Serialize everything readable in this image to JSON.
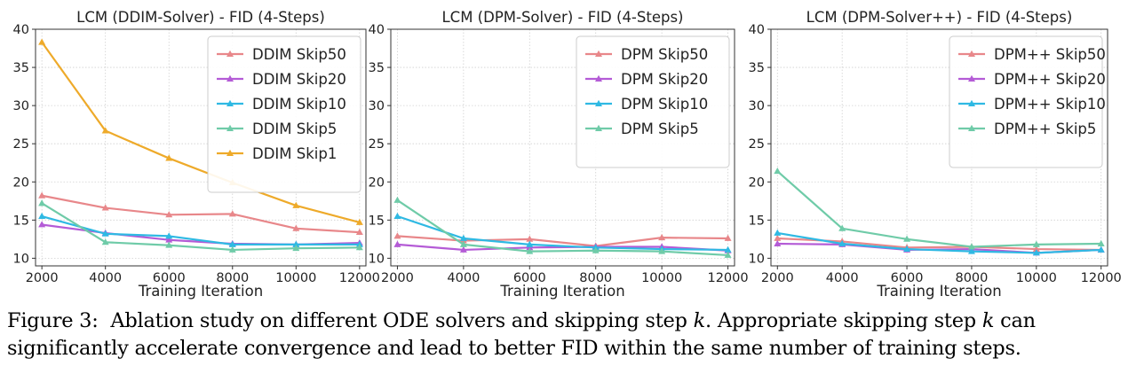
{
  "chart_data": [
    {
      "type": "line",
      "title": "LCM (DDIM-Solver) - FID (4-Steps)",
      "xlabel": "Training Iteration",
      "ylabel": "",
      "x": [
        2000,
        4000,
        6000,
        8000,
        10000,
        12000
      ],
      "xlim": [
        1800,
        12200
      ],
      "ylim": [
        9,
        40
      ],
      "yticks": [
        10,
        15,
        20,
        25,
        30,
        35,
        40
      ],
      "grid": true,
      "legend": "top-right",
      "series": [
        {
          "name": "DDIM Skip50",
          "color": "#e8878a",
          "values": [
            18.2,
            16.6,
            15.7,
            15.8,
            13.9,
            13.4
          ]
        },
        {
          "name": "DDIM Skip20",
          "color": "#b45bd6",
          "values": [
            14.4,
            13.3,
            12.4,
            11.9,
            11.8,
            12.0
          ]
        },
        {
          "name": "DDIM Skip10",
          "color": "#2fb9e3",
          "values": [
            15.5,
            13.2,
            12.9,
            11.8,
            11.8,
            11.8
          ]
        },
        {
          "name": "DDIM Skip5",
          "color": "#6fcba8",
          "values": [
            17.2,
            12.1,
            11.7,
            11.1,
            11.3,
            11.4
          ]
        },
        {
          "name": "DDIM Skip1",
          "color": "#eeaa2a",
          "values": [
            38.3,
            26.7,
            23.1,
            19.9,
            16.9,
            14.7
          ]
        }
      ]
    },
    {
      "type": "line",
      "title": "LCM (DPM-Solver) - FID (4-Steps)",
      "xlabel": "Training Iteration",
      "ylabel": "",
      "x": [
        2000,
        4000,
        6000,
        8000,
        10000,
        12000
      ],
      "xlim": [
        1800,
        12200
      ],
      "ylim": [
        9,
        40
      ],
      "yticks": [
        10,
        15,
        20,
        25,
        30,
        35,
        40
      ],
      "grid": true,
      "legend": "top-right",
      "series": [
        {
          "name": "DPM Skip50",
          "color": "#e8878a",
          "values": [
            12.9,
            12.3,
            12.5,
            11.6,
            12.7,
            12.6
          ]
        },
        {
          "name": "DPM Skip20",
          "color": "#b45bd6",
          "values": [
            11.8,
            11.1,
            11.4,
            11.5,
            11.5,
            11.0
          ]
        },
        {
          "name": "DPM Skip10",
          "color": "#2fb9e3",
          "values": [
            15.5,
            12.6,
            11.8,
            11.4,
            11.2,
            11.1
          ]
        },
        {
          "name": "DPM Skip5",
          "color": "#6fcba8",
          "values": [
            17.6,
            11.8,
            10.9,
            11.0,
            10.9,
            10.4
          ]
        }
      ]
    },
    {
      "type": "line",
      "title": "LCM (DPM-Solver++) - FID (4-Steps)",
      "xlabel": "Training Iteration",
      "ylabel": "",
      "x": [
        2000,
        4000,
        6000,
        8000,
        10000,
        12000
      ],
      "xlim": [
        1800,
        12200
      ],
      "ylim": [
        9,
        40
      ],
      "yticks": [
        10,
        15,
        20,
        25,
        30,
        35,
        40
      ],
      "grid": true,
      "legend": "top-right",
      "series": [
        {
          "name": "DPM++ Skip50",
          "color": "#e8878a",
          "values": [
            12.6,
            12.2,
            11.4,
            11.5,
            11.2,
            11.1
          ]
        },
        {
          "name": "DPM++ Skip20",
          "color": "#b45bd6",
          "values": [
            11.9,
            11.8,
            11.1,
            11.2,
            10.7,
            11.1
          ]
        },
        {
          "name": "DPM++ Skip10",
          "color": "#2fb9e3",
          "values": [
            13.3,
            11.9,
            11.2,
            10.9,
            10.7,
            11.1
          ]
        },
        {
          "name": "DPM++ Skip5",
          "color": "#6fcba8",
          "values": [
            21.4,
            13.9,
            12.5,
            11.5,
            11.8,
            11.9
          ]
        }
      ]
    }
  ],
  "caption": {
    "label": "Figure 3:",
    "line1_a": "Ablation study on different ODE solvers and skipping step ",
    "k1": "k",
    "line1_b": ".  Appropriate skipping step ",
    "k2": "k",
    "line1_c": " can",
    "line2": "significantly accelerate convergence and lead to better FID within the same number of training steps."
  }
}
